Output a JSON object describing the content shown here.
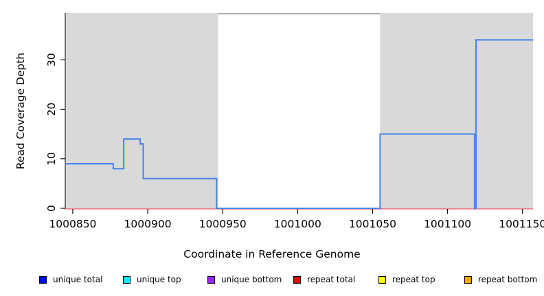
{
  "chart_data": {
    "type": "line",
    "subtype": "step-coverage",
    "title": "",
    "xlabel": "Coordinate in Reference Genome",
    "ylabel": "Read Coverage Depth",
    "xlim": [
      1000845,
      1001157
    ],
    "ylim": [
      0,
      39.3
    ],
    "x_ticks": [
      1000850,
      1000900,
      1000950,
      1001000,
      1001050,
      1001100,
      1001150
    ],
    "y_ticks": [
      0,
      10,
      20,
      30
    ],
    "grid": false,
    "plot_background": "#ffffff",
    "shaded_regions": [
      {
        "x0": 1000845,
        "x1": 1000947,
        "color": "#d9d9d9"
      },
      {
        "x0": 1001055,
        "x1": 1001157,
        "color": "#d9d9d9"
      }
    ],
    "series": [
      {
        "name": "repeat total",
        "color": "#ed6678",
        "line_width": 1.4,
        "steps": [
          [
            1000845,
            0
          ]
        ],
        "x_end": 1001157
      },
      {
        "name": "unique total",
        "color": "#4583e8",
        "line_width": 2,
        "steps": [
          [
            1000845,
            9
          ],
          [
            1000877,
            8
          ],
          [
            1000884,
            14
          ],
          [
            1000895,
            13
          ],
          [
            1000897,
            6
          ],
          [
            1000946,
            0
          ],
          [
            1001055,
            15
          ],
          [
            1001118,
            0
          ],
          [
            1001119,
            34
          ]
        ],
        "x_end": 1001157
      }
    ],
    "legend": {
      "position": "bottom",
      "items": [
        {
          "label": "unique total",
          "fill": "#0000f0",
          "border": "#000000"
        },
        {
          "label": "unique top",
          "fill": "#00f5f5",
          "border": "#000000"
        },
        {
          "label": "unique bottom",
          "fill": "#a020f0",
          "border": "#000000"
        },
        {
          "label": "repeat total",
          "fill": "#ee0000",
          "border": "#000000"
        },
        {
          "label": "repeat top",
          "fill": "#ffff00",
          "border": "#000000"
        },
        {
          "label": "repeat bottom",
          "fill": "#ffa500",
          "border": "#000000"
        }
      ]
    },
    "axis_colors": {
      "box_top": "#787878",
      "axis_line": "#262626",
      "tick": "#000000"
    }
  }
}
